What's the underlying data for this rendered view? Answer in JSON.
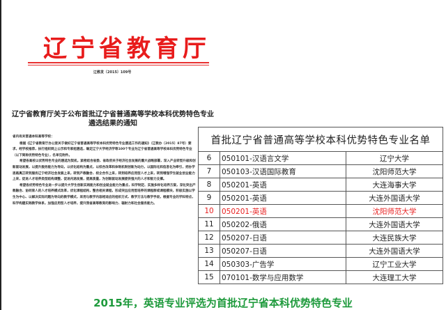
{
  "document": {
    "org_name": "辽宁省教育厅",
    "doc_number": "辽教发〔2015〕109号",
    "title": "辽宁省教育厅关于公布首批辽宁省普通高等学校本科优势特色专业遴选结果的通知",
    "salutation": "省内有关普通本科高等学校：",
    "paragraphs": [
      "根据《辽宁省教育厅办公室关于做好辽宁省普通高等学校本科优势特色专业遴选工作的通知》（辽教办〔2015〕87号）要求，经学校推荐，执行组织网上公示和专家组遴选，确定辽宁大学经济学等100个专业为辽宁省普通高等学校本科优势特色专业（以下简称优势特色专业），名单见附件。",
      "希望各高校以优势特色专业的遴选为契机，紧密结合省委、省政府关于经济社会发展的重大战略部署，深入产业转型升级和创新驱动发展，以提升服务能力为导向，以优化结构为重点，以综合改革和体制机制创新为动力，以国际化和信息化为牵引，把办学思路真正转到服务辽宁经济社会发展上来，转到产教融合、校企合作上来，转到培养应用型人才上来，转到增强学生就业创业能力上来，促进人才培养类型结构调整，促进内涵发展，提高质量，为创新驱动发展提供强大的人才和智力支撑。",
      "希望各优势特色专业进一步以提升大学生创新实践能力和创业就业能力为重点，科学制定、实施多样化培养方案，深化突出产教融合、协同育人的人才培养模式改革，优化课程结构，整合相关课程，形成突出应用型培养的课程群或课程模块，积极实施以学生为中心、以解决实际问题为导向的教学模式，采用与教学内容相适应的组织方式、教学方法与教学手段，根据专业的学科特点，科学构建实践教学体系，加强应用型人才培养，提升我省高等教育的影响力、辐射力和社会服务能力。"
    ]
  },
  "table": {
    "title": "首批辽宁省普通高等学校本科优势特色专业名单",
    "highlight_color": "#e82020",
    "rows": [
      {
        "no": "6",
        "major": "050101-汉语言文学",
        "university": "辽宁大学"
      },
      {
        "no": "7",
        "major": "050103-汉语国际教育",
        "university": "沈阳师范大学"
      },
      {
        "no": "8",
        "major": "050201-英语",
        "university": "大连海事大学"
      },
      {
        "no": "9",
        "major": "050201-英语",
        "university": "大连外国语大学"
      },
      {
        "no": "10",
        "major": "050201-英语",
        "university": "沈阳师范大学",
        "highlighted": true
      },
      {
        "no": "11",
        "major": "050202-俄语",
        "university": "大连外国语大学"
      },
      {
        "no": "12",
        "major": "050207-日语",
        "university": "大连民族大学"
      },
      {
        "no": "13",
        "major": "050207-日语",
        "university": "大连外国语大学"
      },
      {
        "no": "14",
        "major": "050303-广告学",
        "university": "辽宁工业大学"
      },
      {
        "no": "15",
        "major": "070101-数学与应用数学",
        "university": "大连理工大学"
      }
    ]
  },
  "caption": {
    "text": "2015年，英语专业评选为首批辽宁省本科优势特色专业",
    "color": "#1e9a3c"
  }
}
